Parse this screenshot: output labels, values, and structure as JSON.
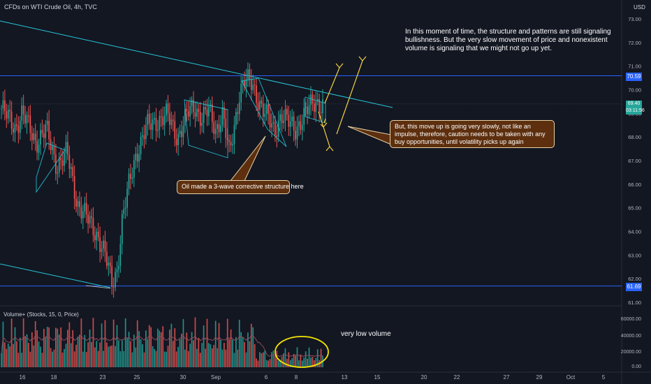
{
  "header": {
    "title": "CFDs on WTI Crude Oil, 4h, TVC"
  },
  "currency": "USD",
  "volume_indicator": {
    "label": "Volume+ (Stocks, 15, 0, Price)"
  },
  "annotations": {
    "top_note": "In this moment of time, the structure and patterns are still signaling bullishness. But the very slow movement of price and nonexistent volume is signaling that we might not go up yet.",
    "right_note": "But, this move up is going very slowly, not like an impulse, therefore, caution needs to be taken with any buy opportunities, until volatility picks up again",
    "wave_note": "Oil made a 3-wave corrective structure here",
    "volume_note": "very low volume"
  },
  "price_labels": {
    "resistance": "70.59",
    "current": "69.40",
    "countdown": "03:11:56",
    "support": "61.69"
  },
  "colors": {
    "background": "#131722",
    "bull": "#26a69a",
    "bear": "#ef5350",
    "channel": "#26c6da",
    "level": "#2962ff",
    "arrow": "#f5d142",
    "callout_fill": "#5d2f0e"
  },
  "chart_data": {
    "type": "candlestick",
    "title": "CFDs on WTI Crude Oil, 4h, TVC",
    "y_axis": {
      "ticks": [
        "73.00",
        "72.00",
        "71.00",
        "70.00",
        "69.00",
        "68.00",
        "67.00",
        "66.00",
        "65.00",
        "64.00",
        "63.00",
        "62.00",
        "61.00"
      ],
      "ylim": [
        61,
        73.5
      ]
    },
    "x_axis": {
      "ticks": [
        "16",
        "18",
        "23",
        "25",
        "30",
        "Sep",
        "6",
        "8",
        "13",
        "15",
        "20",
        "22",
        "27",
        "29",
        "Oct",
        "5"
      ]
    },
    "horizontal_levels": [
      70.59,
      61.69
    ],
    "last_price": 69.4,
    "anchors": [
      [
        0,
        69.2
      ],
      [
        8,
        68.4
      ],
      [
        12,
        69.0
      ],
      [
        20,
        67.8
      ],
      [
        26,
        68.3
      ],
      [
        32,
        66.8
      ],
      [
        38,
        67.3
      ],
      [
        44,
        65.2
      ],
      [
        50,
        64.5
      ],
      [
        56,
        63.8
      ],
      [
        60,
        63.0
      ],
      [
        64,
        61.8
      ],
      [
        67,
        62.4
      ],
      [
        70,
        64.5
      ],
      [
        74,
        66.0
      ],
      [
        78,
        67.3
      ],
      [
        84,
        68.4
      ],
      [
        90,
        68.7
      ],
      [
        96,
        68.9
      ],
      [
        102,
        68.0
      ],
      [
        108,
        69.0
      ],
      [
        112,
        69.3
      ],
      [
        116,
        68.8
      ],
      [
        120,
        69.1
      ],
      [
        124,
        68.3
      ],
      [
        128,
        69.0
      ],
      [
        132,
        67.2
      ],
      [
        135,
        68.5
      ],
      [
        138,
        70.0
      ],
      [
        141,
        70.4
      ],
      [
        145,
        70.2
      ],
      [
        150,
        69.4
      ],
      [
        154,
        68.8
      ],
      [
        158,
        68.2
      ],
      [
        162,
        69.0
      ],
      [
        166,
        68.6
      ],
      [
        170,
        68.3
      ],
      [
        174,
        68.8
      ],
      [
        178,
        69.2
      ],
      [
        182,
        69.5
      ],
      [
        186,
        69.4
      ]
    ],
    "volume_ticks": [
      "60000.00",
      "40000.00",
      "20000.00",
      "0.00"
    ]
  }
}
